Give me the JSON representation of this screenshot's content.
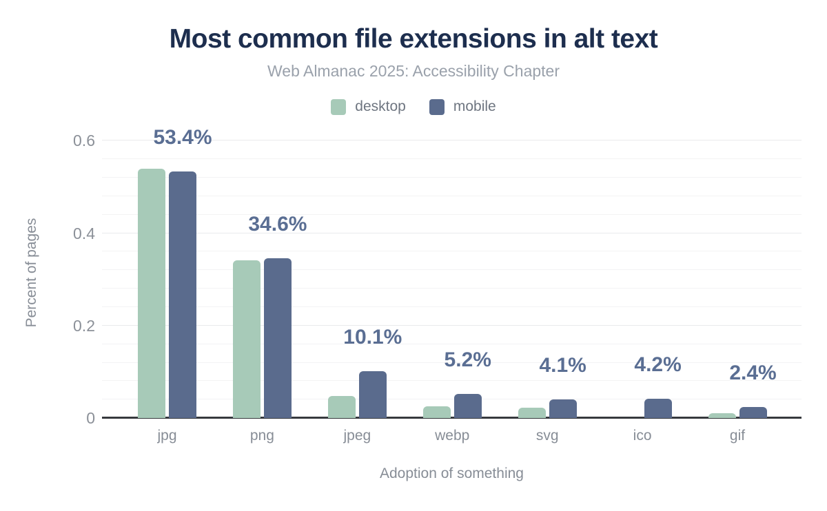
{
  "chart_data": {
    "type": "bar",
    "title": "Most common file extensions in alt text",
    "subtitle": "Web Almanac 2025: Accessibility Chapter",
    "xlabel": "Adoption of something",
    "ylabel": "Percent of pages",
    "categories": [
      "jpg",
      "png",
      "jpeg",
      "webp",
      "svg",
      "ico",
      "gif"
    ],
    "series": [
      {
        "name": "desktop",
        "color": "#a7cab8",
        "values": [
          0.54,
          0.341,
          0.047,
          0.026,
          0.022,
          0,
          0.01
        ]
      },
      {
        "name": "mobile",
        "color": "#5a6b8d",
        "values": [
          0.534,
          0.346,
          0.101,
          0.052,
          0.041,
          0.042,
          0.024
        ]
      }
    ],
    "annotations": [
      "53.4%",
      "34.6%",
      "10.1%",
      "5.2%",
      "4.1%",
      "4.2%",
      "2.4%"
    ],
    "annotation_series": "mobile",
    "yticks": [
      0,
      0.2,
      0.4,
      0.6
    ],
    "ytick_labels": [
      "0",
      "0.2",
      "0.4",
      "0.6"
    ],
    "ylim": [
      0,
      0.626
    ],
    "grid": {
      "minor_step": 0.04,
      "major_step": 0.2,
      "on": true
    },
    "legend_position": "top",
    "colors": {
      "title": "#1d2e4e",
      "subtitle": "#9aa1ab",
      "legend_text": "#6e7580",
      "value_label": "#5a6e93",
      "axis_text": "#878d96",
      "tick_text": "#8b9098",
      "gridline": "#f3f3f4",
      "baseline": "#36393d",
      "background": "#ffffff"
    }
  }
}
